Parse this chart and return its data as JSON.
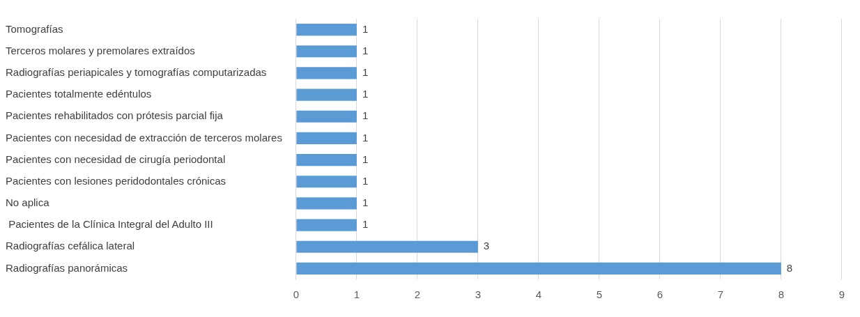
{
  "chart_data": {
    "type": "bar",
    "orientation": "horizontal",
    "categories": [
      "Tomografías",
      "Terceros molares y premolares extraídos",
      "Radiografías periapicales y tomografías computarizadas",
      "Pacientes totalmente edéntulos",
      "Pacientes rehabilitados con prótesis parcial fija",
      "Pacientes con necesidad de extracción de terceros molares",
      "Pacientes con necesidad de cirugía periodontal",
      "Pacientes con lesiones peridodontales crónicas",
      "No aplica",
      " Pacientes de la Clínica Integral del Adulto III",
      "Radiografías cefálica lateral",
      "Radiografías panorámicas"
    ],
    "values": [
      1,
      1,
      1,
      1,
      1,
      1,
      1,
      1,
      1,
      1,
      3,
      8
    ],
    "color": "#5b9bd5",
    "xlim": [
      0,
      9
    ],
    "xticks": [
      0,
      1,
      2,
      3,
      4,
      5,
      6,
      7,
      8,
      9
    ],
    "grid": "x",
    "data_labels": true,
    "legend": false
  }
}
